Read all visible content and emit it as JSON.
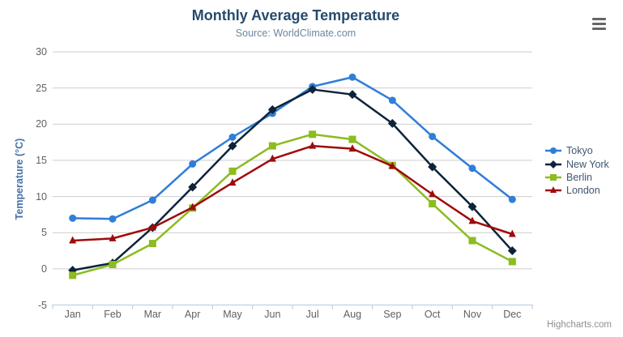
{
  "chart_data": {
    "type": "line",
    "title": "Monthly Average Temperature",
    "subtitle": "Source: WorldClimate.com",
    "xlabel": "",
    "ylabel": "Temperature (°C)",
    "ylim": [
      -5,
      30
    ],
    "yticks": [
      30,
      25,
      20,
      15,
      10,
      5,
      0,
      -5
    ],
    "categories": [
      "Jan",
      "Feb",
      "Mar",
      "Apr",
      "May",
      "Jun",
      "Jul",
      "Aug",
      "Sep",
      "Oct",
      "Nov",
      "Dec"
    ],
    "grid": "horizontal-only",
    "legend_position": "right",
    "series": [
      {
        "name": "Tokyo",
        "symbol": "circle",
        "color": "#2f7ed8",
        "values": [
          7.0,
          6.9,
          9.5,
          14.5,
          18.2,
          21.5,
          25.2,
          26.5,
          23.3,
          18.3,
          13.9,
          9.6
        ]
      },
      {
        "name": "New York",
        "symbol": "diamond",
        "color": "#0d233a",
        "values": [
          -0.2,
          0.8,
          5.7,
          11.3,
          17.0,
          22.0,
          24.8,
          24.1,
          20.1,
          14.1,
          8.6,
          2.5
        ]
      },
      {
        "name": "Berlin",
        "symbol": "square",
        "color": "#8bbc21",
        "values": [
          -0.9,
          0.6,
          3.5,
          8.4,
          13.5,
          17.0,
          18.6,
          17.9,
          14.3,
          9.0,
          3.9,
          1.0
        ]
      },
      {
        "name": "London",
        "symbol": "triangle",
        "color": "#a00a0a",
        "values": [
          3.9,
          4.2,
          5.7,
          8.5,
          11.9,
          15.2,
          17.0,
          16.6,
          14.2,
          10.3,
          6.6,
          4.8
        ]
      }
    ]
  },
  "credits": {
    "label": "Highcharts.com"
  },
  "icons": {
    "export_menu": "hamburger-menu-icon"
  },
  "colors": {
    "background": "#ffffff",
    "title": "#274b6d",
    "subtitle": "#6d869f",
    "yaxis_title": "#4572a7",
    "axis_label": "#606060",
    "grid_line": "#cdcdcd",
    "axis_line": "#c0d0e0",
    "legend_text": "#3e576f",
    "credits": "#8f8f8f",
    "menu_icon": "#666666"
  }
}
